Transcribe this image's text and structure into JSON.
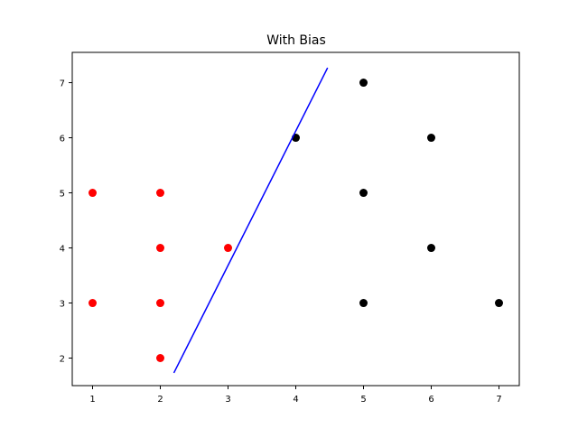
{
  "chart_data": {
    "type": "scatter",
    "title": "With Bias",
    "xlabel": "",
    "ylabel": "",
    "xlim": [
      0.7,
      7.3
    ],
    "ylim": [
      1.5,
      7.55
    ],
    "xticks": [
      "1",
      "2",
      "3",
      "4",
      "5",
      "6",
      "7"
    ],
    "yticks": [
      "2",
      "3",
      "4",
      "5",
      "6",
      "7"
    ],
    "grid": false,
    "series": [
      {
        "type": "scatter",
        "color": "#ff0000",
        "points": [
          [
            1,
            5
          ],
          [
            1,
            3
          ],
          [
            2,
            5
          ],
          [
            2,
            4
          ],
          [
            2,
            3
          ],
          [
            2,
            2
          ],
          [
            3,
            4
          ]
        ]
      },
      {
        "type": "scatter",
        "color": "#000000",
        "points": [
          [
            4,
            6
          ],
          [
            5,
            7
          ],
          [
            5,
            5
          ],
          [
            5,
            3
          ],
          [
            6,
            6
          ],
          [
            6,
            4
          ],
          [
            7,
            3
          ]
        ]
      },
      {
        "type": "line",
        "color": "#0000ff",
        "points": [
          [
            2.2,
            1.73
          ],
          [
            4.47,
            7.27
          ]
        ]
      }
    ]
  }
}
